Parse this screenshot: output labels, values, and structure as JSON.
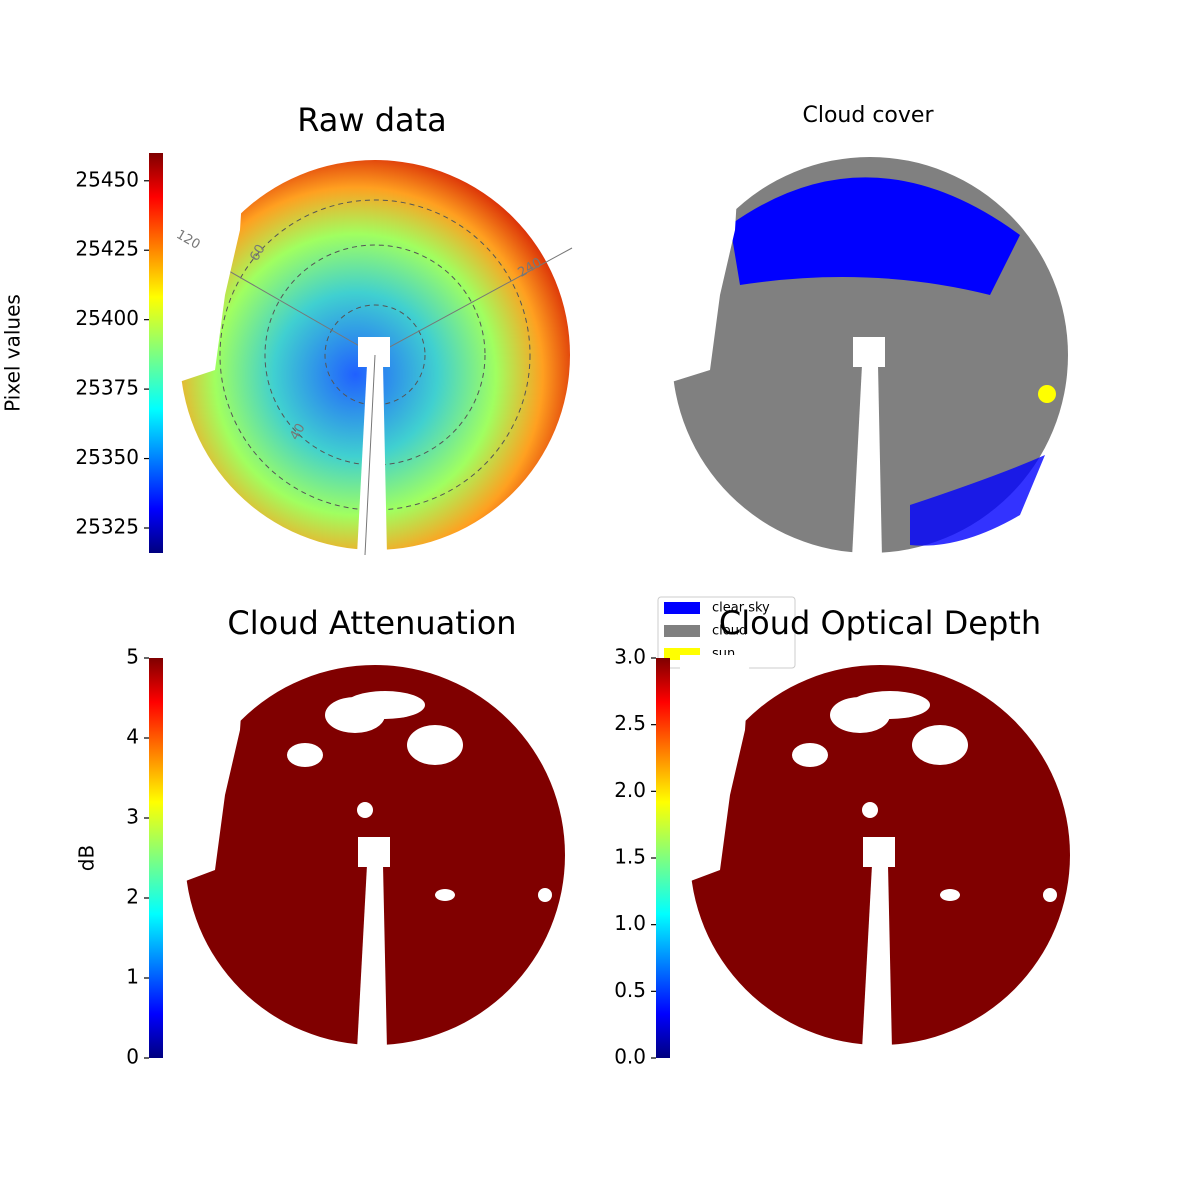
{
  "chart_data": [
    {
      "type": "image",
      "title": "Raw data",
      "colorbar": {
        "label": "Pixel values",
        "colormap": "jet",
        "lim": [
          25316,
          25460
        ],
        "ticks": [
          25325,
          25350,
          25375,
          25400,
          25425,
          25450
        ]
      },
      "annotations": [
        "120",
        "60",
        "240",
        "40"
      ]
    },
    {
      "type": "image",
      "title": "Cloud cover",
      "legend": [
        {
          "name": "clear sky",
          "color": "#0000ff"
        },
        {
          "name": "cloud",
          "color": "#808080"
        },
        {
          "name": "sun",
          "color": "#ffff00"
        }
      ]
    },
    {
      "type": "image",
      "title": "Cloud Attenuation",
      "colorbar": {
        "label": "dB",
        "colormap": "jet",
        "lim": [
          0,
          5
        ],
        "ticks": [
          0,
          1,
          2,
          3,
          4,
          5
        ]
      }
    },
    {
      "type": "image",
      "title": "Cloud Optical Depth",
      "colorbar": {
        "colormap": "jet",
        "lim": [
          0,
          3
        ],
        "ticks": [
          {
            "value": 0,
            "label": "0.0"
          },
          {
            "value": 0.5,
            "label": "0.5"
          },
          {
            "value": 1,
            "label": "1.0"
          },
          {
            "value": 1.5,
            "label": "1.5"
          },
          {
            "value": 2,
            "label": "2.0"
          },
          {
            "value": 2.5,
            "label": "2.5"
          },
          {
            "value": 3,
            "label": "3.0"
          }
        ]
      }
    }
  ]
}
